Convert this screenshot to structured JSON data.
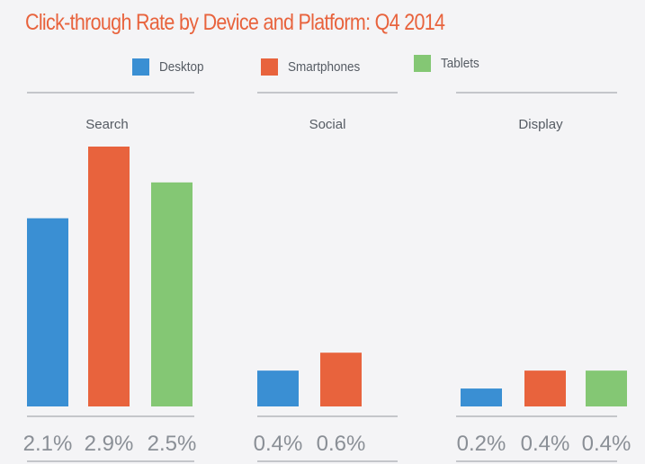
{
  "chart_data": {
    "type": "bar",
    "title": "Click-through Rate by Device and Platform: Q4 2014",
    "legend": {
      "position": "top",
      "items": [
        {
          "name": "Desktop",
          "color": "#3a8fd3"
        },
        {
          "name": "Smartphones",
          "color": "#e8633d"
        },
        {
          "name": "Tablets",
          "color": "#84c774"
        }
      ]
    },
    "ylim": [
      0,
      2.9
    ],
    "grid": false,
    "panels": [
      {
        "name": "Search",
        "values": [
          2.1,
          2.9,
          2.5
        ],
        "labels": [
          "2.1%",
          "2.9%",
          "2.5%"
        ]
      },
      {
        "name": "Social",
        "values": [
          0.4,
          0.6
        ],
        "labels": [
          "0.4%",
          "0.6%"
        ]
      },
      {
        "name": "Display",
        "values": [
          0.2,
          0.4,
          0.4
        ],
        "labels": [
          "0.2%",
          "0.4%",
          "0.4%"
        ]
      }
    ]
  }
}
